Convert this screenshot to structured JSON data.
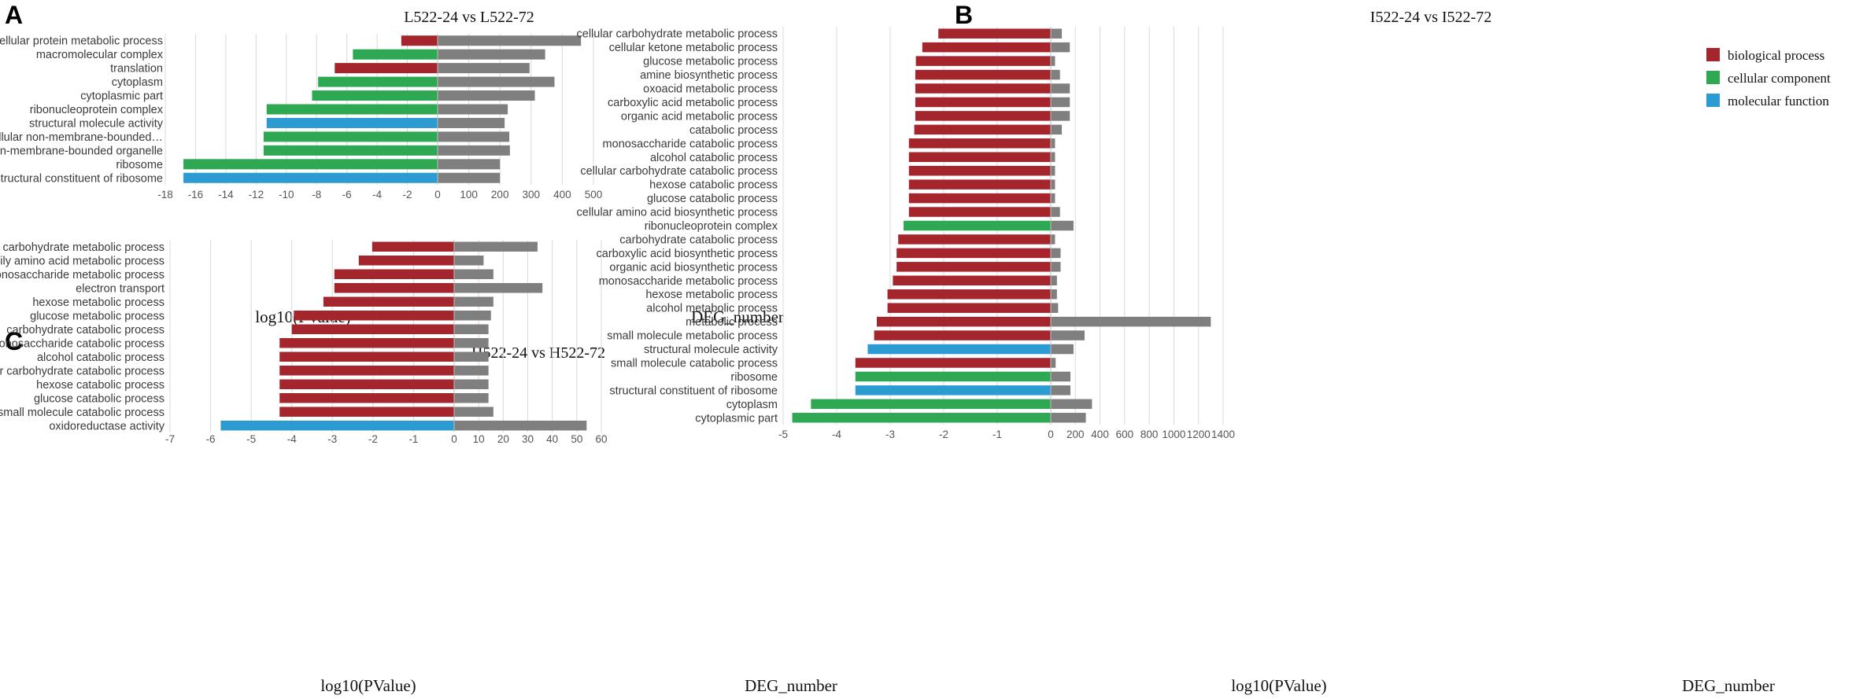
{
  "colors": {
    "biological_process": "#A4262C",
    "cellular_component": "#2EA852",
    "molecular_function": "#2B9BD2",
    "deg": "#7F7F7F"
  },
  "legend": [
    {
      "key": "biological_process",
      "label": "biological process"
    },
    {
      "key": "cellular_component",
      "label": "cellular component"
    },
    {
      "key": "molecular_function",
      "label": "molecular function"
    }
  ],
  "chart_data": [
    {
      "id": "A",
      "panel_label": "A",
      "type": "bar",
      "title": "L522-24 vs L522-72",
      "xlabel_left": "log10(PValue)",
      "xlabel_right": "DEG_number",
      "left_range": [
        -18,
        0
      ],
      "left_ticks": [
        -18,
        -16,
        -14,
        -12,
        -10,
        -8,
        -6,
        -4,
        -2,
        0
      ],
      "right_range": [
        0,
        500
      ],
      "right_ticks": [
        0,
        100,
        200,
        300,
        400,
        500
      ],
      "categories": [
        "cellular protein metabolic process",
        "macromolecular complex",
        "translation",
        "cytoplasm",
        "cytoplasmic part",
        "ribonucleoprotein complex",
        "structural molecule activity",
        "intracellular non-membrane-bounded…",
        "non-membrane-bounded organelle",
        "ribosome",
        "structural constituent of ribosome"
      ],
      "log10_pvalue": [
        -2.4,
        -5.6,
        -6.8,
        -7.9,
        -8.3,
        -11.3,
        -11.3,
        -11.5,
        -11.5,
        -16.8,
        -16.8
      ],
      "deg_number": [
        460,
        345,
        295,
        375,
        312,
        225,
        215,
        230,
        232,
        200,
        200
      ],
      "go_type": [
        "biological_process",
        "cellular_component",
        "biological_process",
        "cellular_component",
        "cellular_component",
        "cellular_component",
        "molecular_function",
        "cellular_component",
        "cellular_component",
        "cellular_component",
        "molecular_function"
      ]
    },
    {
      "id": "B",
      "panel_label": "B",
      "type": "bar",
      "title": "I522-24 vs I522-72",
      "xlabel_left": "log10(PValue)",
      "xlabel_right": "DEG_number",
      "left_range": [
        -5,
        0
      ],
      "left_ticks": [
        -5,
        -4,
        -3,
        -2,
        -1,
        0
      ],
      "right_range": [
        0,
        1400
      ],
      "right_ticks": [
        0,
        200,
        400,
        600,
        800,
        1000,
        1200,
        1400
      ],
      "categories": [
        "cellular carbohydrate metabolic process",
        "cellular ketone metabolic process",
        "glucose metabolic process",
        "amine biosynthetic process",
        "oxoacid metabolic process",
        "carboxylic acid metabolic process",
        "organic acid metabolic process",
        "catabolic process",
        "monosaccharide catabolic process",
        "alcohol catabolic process",
        "cellular carbohydrate catabolic process",
        "hexose catabolic process",
        "glucose catabolic process",
        "cellular amino acid biosynthetic process",
        "ribonucleoprotein complex",
        "carbohydrate catabolic process",
        "carboxylic acid biosynthetic process",
        "organic acid biosynthetic process",
        "monosaccharide metabolic process",
        "hexose metabolic process",
        "alcohol metabolic process",
        "metabolic process",
        "small molecule metabolic process",
        "structural molecule activity",
        "small molecule catabolic process",
        "ribosome",
        "structural constituent of ribosome",
        "cytoplasm",
        "cytoplasmic part"
      ],
      "log10_pvalue": [
        -2.1,
        -2.4,
        -2.52,
        -2.53,
        -2.53,
        -2.53,
        -2.53,
        -2.55,
        -2.65,
        -2.65,
        -2.65,
        -2.65,
        -2.65,
        -2.65,
        -2.75,
        -2.85,
        -2.88,
        -2.88,
        -2.95,
        -3.05,
        -3.05,
        -3.25,
        -3.3,
        -3.42,
        -3.65,
        -3.65,
        -3.65,
        -4.48,
        -4.83
      ],
      "deg_number": [
        90,
        155,
        35,
        75,
        155,
        155,
        155,
        90,
        35,
        35,
        35,
        35,
        35,
        75,
        185,
        35,
        80,
        80,
        50,
        50,
        60,
        1300,
        275,
        185,
        40,
        160,
        160,
        335,
        285
      ],
      "go_type": [
        "biological_process",
        "biological_process",
        "biological_process",
        "biological_process",
        "biological_process",
        "biological_process",
        "biological_process",
        "biological_process",
        "biological_process",
        "biological_process",
        "biological_process",
        "biological_process",
        "biological_process",
        "biological_process",
        "cellular_component",
        "biological_process",
        "biological_process",
        "biological_process",
        "biological_process",
        "biological_process",
        "biological_process",
        "biological_process",
        "biological_process",
        "molecular_function",
        "biological_process",
        "cellular_component",
        "molecular_function",
        "cellular_component",
        "cellular_component"
      ]
    },
    {
      "id": "C",
      "panel_label": "C",
      "type": "bar",
      "title": "H522-24 vs H522-72",
      "xlabel_left": "log10(PValue)",
      "xlabel_right": "DEG_number",
      "left_range": [
        -7,
        0
      ],
      "left_ticks": [
        -7,
        -6,
        -5,
        -4,
        -3,
        -2,
        -1,
        0
      ],
      "right_range": [
        0,
        60
      ],
      "right_ticks": [
        0,
        10,
        20,
        30,
        40,
        50,
        60
      ],
      "categories": [
        "carbohydrate metabolic process",
        "serine family amino acid metabolic process",
        "monosaccharide metabolic process",
        "electron transport",
        "hexose metabolic process",
        "glucose metabolic process",
        "carbohydrate catabolic process",
        "monosaccharide catabolic process",
        "alcohol catabolic process",
        "cellular carbohydrate catabolic process",
        "hexose catabolic process",
        "glucose catabolic process",
        "small molecule catabolic process",
        "oxidoreductase activity"
      ],
      "log10_pvalue": [
        -2.02,
        -2.35,
        -2.95,
        -2.95,
        -3.22,
        -3.95,
        -4.0,
        -4.3,
        -4.3,
        -4.3,
        -4.3,
        -4.3,
        -4.3,
        -5.75
      ],
      "deg_number": [
        34,
        12,
        16,
        36,
        16,
        15,
        14,
        14,
        14,
        14,
        14,
        14,
        16,
        54
      ],
      "go_type": [
        "biological_process",
        "biological_process",
        "biological_process",
        "biological_process",
        "biological_process",
        "biological_process",
        "biological_process",
        "biological_process",
        "biological_process",
        "biological_process",
        "biological_process",
        "biological_process",
        "biological_process",
        "molecular_function"
      ]
    }
  ]
}
